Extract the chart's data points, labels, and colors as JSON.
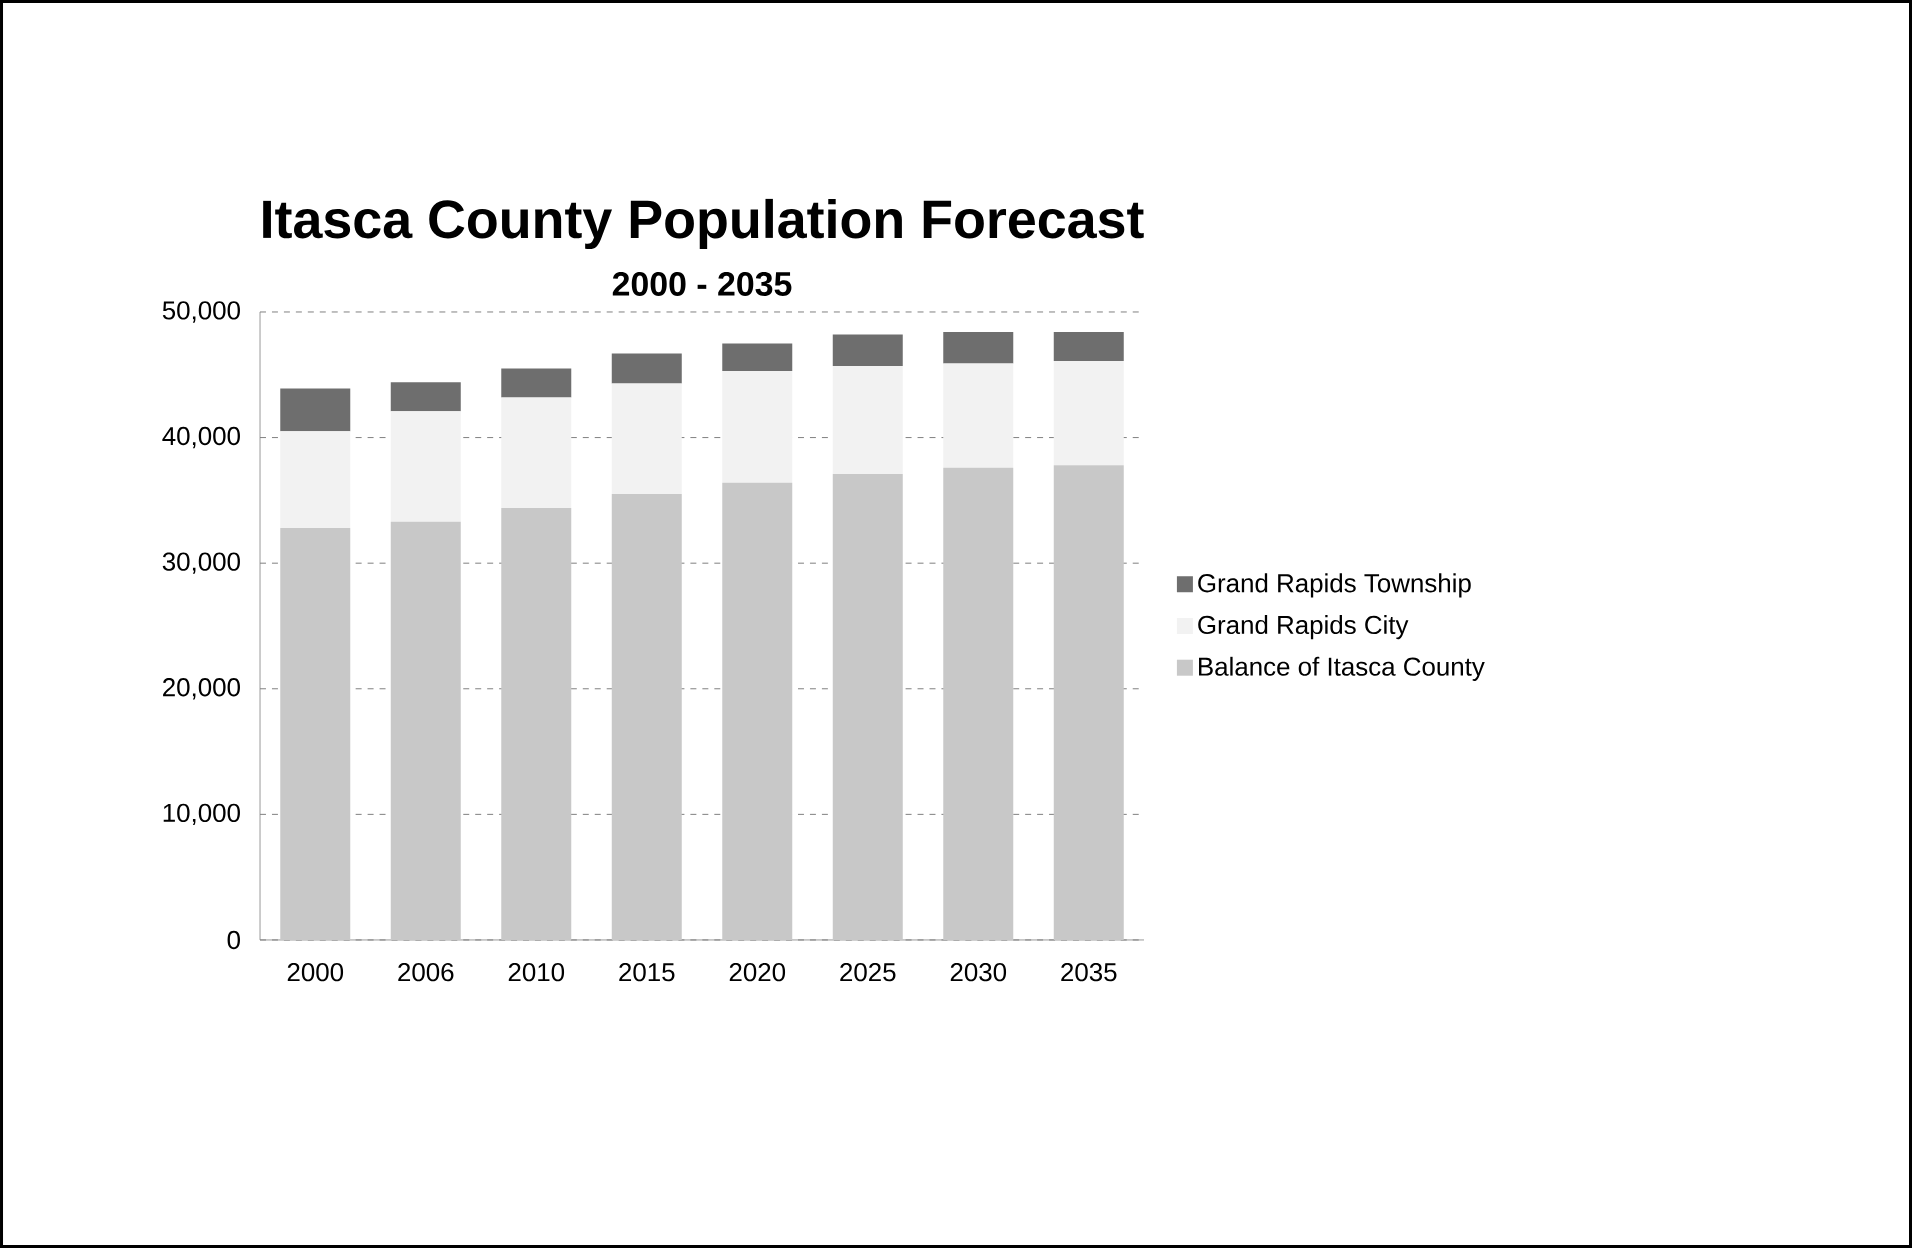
{
  "chart_data": {
    "type": "bar",
    "title": "Itasca County Population Forecast",
    "subtitle": "2000 - 2035",
    "categories": [
      "2000",
      "2006",
      "2010",
      "2015",
      "2020",
      "2025",
      "2030",
      "2035"
    ],
    "stacked": true,
    "series": [
      {
        "name": "Balance of Itasca County",
        "color": "#c8c8c8",
        "values": [
          32800,
          33300,
          34400,
          35500,
          36400,
          37100,
          37600,
          37800
        ]
      },
      {
        "name": "Grand Rapids City",
        "color": "#f2f2f2",
        "values": [
          7700,
          8800,
          8800,
          8800,
          8900,
          8600,
          8300,
          8300
        ]
      },
      {
        "name": "Grand Rapids Township",
        "color": "#6e6e6e",
        "values": [
          3400,
          2300,
          2300,
          2400,
          2200,
          2500,
          2500,
          2300
        ]
      }
    ],
    "ylim": [
      0,
      50000
    ],
    "yticks": [
      {
        "value": 0,
        "label": "0"
      },
      {
        "value": 10000,
        "label": "10,000"
      },
      {
        "value": 20000,
        "label": "20,000"
      },
      {
        "value": 30000,
        "label": "30,000"
      },
      {
        "value": 40000,
        "label": "40,000"
      },
      {
        "value": 50000,
        "label": "50,000"
      }
    ],
    "grid": "y",
    "legend": "right"
  }
}
